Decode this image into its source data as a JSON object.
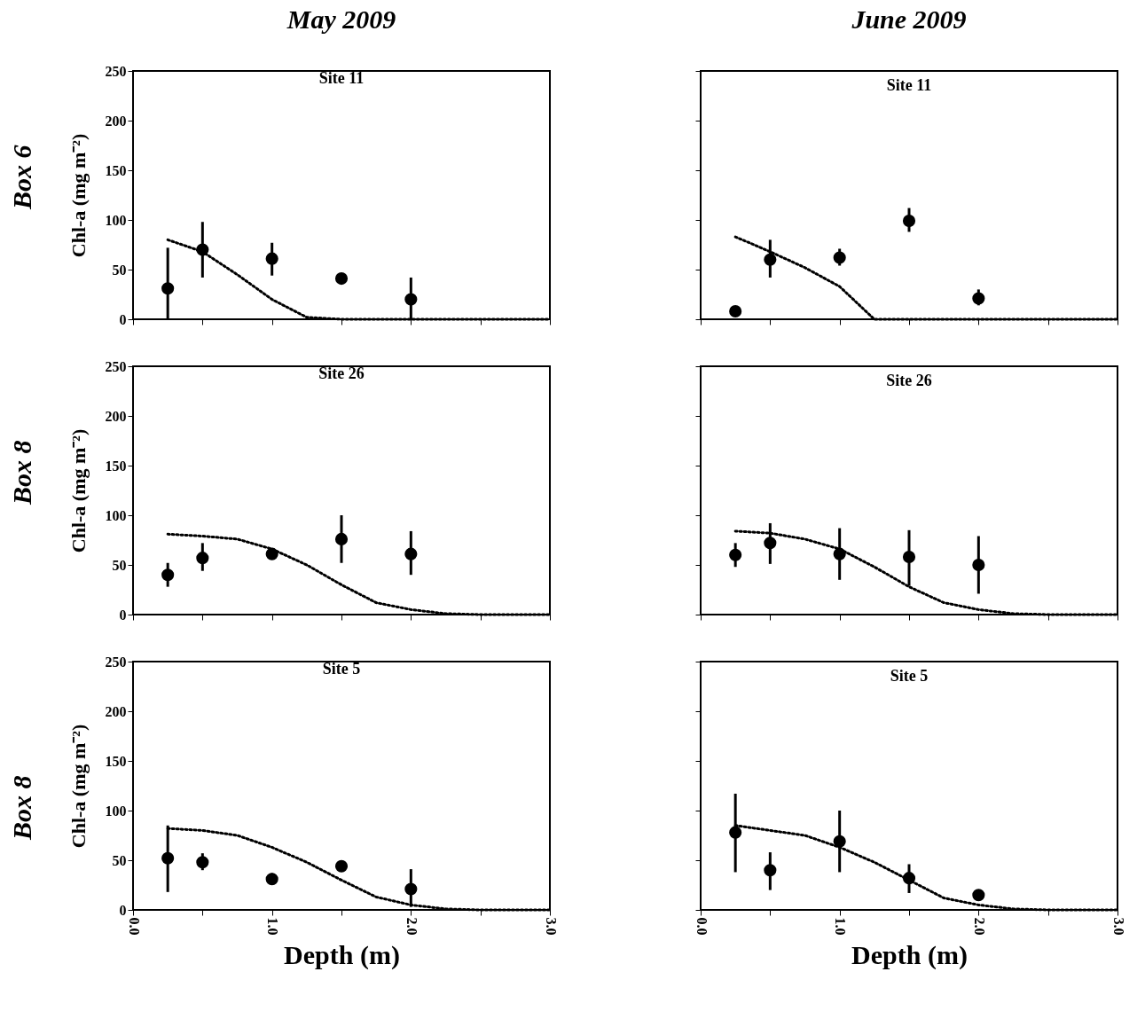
{
  "chart_data": [
    {
      "type": "scatter",
      "title": "Site 11",
      "ylabel": "Chl-a (mg m⁻²)",
      "annotations": [
        "May 2009",
        "Box 6"
      ],
      "xlim": [
        0,
        3
      ],
      "ylim": [
        0,
        250
      ],
      "xticks": [
        0,
        0.5,
        1,
        1.5,
        2,
        2.5,
        3
      ],
      "yticks": [
        0,
        50,
        100,
        150,
        200,
        250
      ],
      "tick_labels": "y",
      "series": [
        {
          "color": "#000000",
          "marker": "circle",
          "x": [
            0.25,
            0.5,
            1.0,
            1.5,
            2.0
          ],
          "values": [
            31,
            70,
            61,
            41,
            20
          ],
          "errors": [
            [
              0,
              72
            ],
            [
              42,
              98
            ],
            [
              44,
              77
            ],
            null,
            [
              0,
              42
            ]
          ]
        },
        {
          "type": "line",
          "line_style": "dotted",
          "color": "#000000",
          "x": [
            0.25,
            0.5,
            0.75,
            1.0,
            1.25,
            1.5,
            2.0,
            2.5,
            3.0
          ],
          "values": [
            80,
            68,
            45,
            20,
            2,
            0,
            0,
            0,
            0
          ]
        }
      ]
    },
    {
      "type": "scatter",
      "title": "Site 11",
      "annotations": [
        "June 2009"
      ],
      "xlim": [
        0,
        3
      ],
      "ylim": [
        0,
        250
      ],
      "xticks": [
        0,
        0.5,
        1,
        1.5,
        2,
        2.5,
        3
      ],
      "yticks": [
        0,
        50,
        100,
        150,
        200,
        250
      ],
      "tick_labels": false,
      "series": [
        {
          "color": "#000000",
          "marker": "circle",
          "x": [
            0.25,
            0.5,
            1.0,
            1.5,
            2.0
          ],
          "values": [
            8,
            60,
            62,
            99,
            21
          ],
          "errors": [
            null,
            [
              42,
              80
            ],
            [
              54,
              71
            ],
            [
              88,
              112
            ],
            [
              14,
              30
            ]
          ]
        },
        {
          "type": "line",
          "line_style": "dotted",
          "color": "#000000",
          "x": [
            0.25,
            0.5,
            0.75,
            1.0,
            1.25,
            1.5,
            2.0,
            2.5,
            3.0
          ],
          "values": [
            83,
            68,
            52,
            33,
            0,
            0,
            0,
            0,
            0
          ]
        }
      ]
    },
    {
      "type": "scatter",
      "title": "Site 26",
      "ylabel": "Chl-a (mg m⁻²)",
      "annotations": [
        "Box 8"
      ],
      "xlim": [
        0,
        3
      ],
      "ylim": [
        0,
        250
      ],
      "xticks": [
        0,
        0.5,
        1,
        1.5,
        2,
        2.5,
        3
      ],
      "yticks": [
        0,
        50,
        100,
        150,
        200,
        250
      ],
      "tick_labels": "y",
      "series": [
        {
          "color": "#000000",
          "marker": "circle",
          "x": [
            0.25,
            0.5,
            1.0,
            1.5,
            2.0
          ],
          "values": [
            40,
            57,
            61,
            76,
            61
          ],
          "errors": [
            [
              28,
              52
            ],
            [
              44,
              72
            ],
            null,
            [
              52,
              100
            ],
            [
              40,
              84
            ]
          ]
        },
        {
          "type": "line",
          "line_style": "dotted",
          "color": "#000000",
          "x": [
            0.25,
            0.5,
            0.75,
            1.0,
            1.25,
            1.5,
            1.75,
            2.0,
            2.25,
            2.5,
            3.0
          ],
          "values": [
            81,
            79,
            76,
            66,
            50,
            30,
            12,
            5,
            1,
            0,
            0
          ]
        }
      ]
    },
    {
      "type": "scatter",
      "title": "Site 26",
      "xlim": [
        0,
        3
      ],
      "ylim": [
        0,
        250
      ],
      "xticks": [
        0,
        0.5,
        1,
        1.5,
        2,
        2.5,
        3
      ],
      "yticks": [
        0,
        50,
        100,
        150,
        200,
        250
      ],
      "tick_labels": false,
      "series": [
        {
          "color": "#000000",
          "marker": "circle",
          "x": [
            0.25,
            0.5,
            1.0,
            1.5,
            2.0
          ],
          "values": [
            60,
            72,
            61,
            58,
            50
          ],
          "errors": [
            [
              48,
              72
            ],
            [
              51,
              92
            ],
            [
              35,
              87
            ],
            [
              29,
              85
            ],
            [
              21,
              79
            ]
          ]
        },
        {
          "type": "line",
          "line_style": "dotted",
          "color": "#000000",
          "x": [
            0.25,
            0.5,
            0.75,
            1.0,
            1.25,
            1.5,
            1.75,
            2.0,
            2.25,
            2.5,
            3.0
          ],
          "values": [
            84,
            82,
            76,
            66,
            48,
            28,
            12,
            5,
            1,
            0,
            0
          ]
        }
      ]
    },
    {
      "type": "scatter",
      "title": "Site 5",
      "xlabel": "Depth (m)",
      "ylabel": "Chl-a (mg m⁻²)",
      "annotations": [
        "Box 8"
      ],
      "xlim": [
        0,
        3
      ],
      "ylim": [
        0,
        250
      ],
      "xticks": [
        {
          "value": 0,
          "label": "0.0"
        },
        {
          "value": 0.5,
          "label": null
        },
        {
          "value": 1,
          "label": "1.0"
        },
        {
          "value": 1.5,
          "label": null
        },
        {
          "value": 2,
          "label": "2.0"
        },
        {
          "value": 2.5,
          "label": null
        },
        {
          "value": 3,
          "label": "3.0"
        }
      ],
      "yticks": [
        0,
        50,
        100,
        150,
        200,
        250
      ],
      "series": [
        {
          "color": "#000000",
          "marker": "circle",
          "x": [
            0.25,
            0.5,
            1.0,
            1.5,
            2.0
          ],
          "values": [
            52,
            48,
            31,
            44,
            21
          ],
          "errors": [
            [
              18,
              85
            ],
            [
              40,
              57
            ],
            [
              25,
              37
            ],
            null,
            [
              3,
              41
            ]
          ]
        },
        {
          "type": "line",
          "line_style": "dotted",
          "color": "#000000",
          "x": [
            0.25,
            0.5,
            0.75,
            1.0,
            1.25,
            1.5,
            1.75,
            2.0,
            2.25,
            2.5,
            3.0
          ],
          "values": [
            82,
            80,
            75,
            63,
            48,
            30,
            13,
            5,
            1,
            0,
            0
          ]
        }
      ]
    },
    {
      "type": "scatter",
      "title": "Site 5",
      "xlabel": "Depth (m)",
      "xlim": [
        0,
        3
      ],
      "ylim": [
        0,
        250
      ],
      "xticks": [
        {
          "value": 0,
          "label": "0.0"
        },
        {
          "value": 0.5,
          "label": null
        },
        {
          "value": 1,
          "label": "1.0"
        },
        {
          "value": 1.5,
          "label": null
        },
        {
          "value": 2,
          "label": "2.0"
        },
        {
          "value": 2.5,
          "label": null
        },
        {
          "value": 3,
          "label": "3.0"
        }
      ],
      "yticks": [
        0,
        50,
        100,
        150,
        200,
        250
      ],
      "tick_labels": "x",
      "series": [
        {
          "color": "#000000",
          "marker": "circle",
          "x": [
            0.25,
            0.5,
            1.0,
            1.5,
            2.0
          ],
          "values": [
            78,
            40,
            69,
            32,
            15
          ],
          "errors": [
            [
              38,
              117
            ],
            [
              20,
              58
            ],
            [
              38,
              100
            ],
            [
              17,
              46
            ],
            [
              10,
              20
            ]
          ]
        },
        {
          "type": "line",
          "line_style": "dotted",
          "color": "#000000",
          "x": [
            0.25,
            0.5,
            0.75,
            1.0,
            1.25,
            1.5,
            1.75,
            2.0,
            2.25,
            2.5,
            3.0
          ],
          "values": [
            85,
            80,
            75,
            63,
            48,
            30,
            12,
            5,
            1,
            0,
            0
          ]
        }
      ]
    }
  ]
}
